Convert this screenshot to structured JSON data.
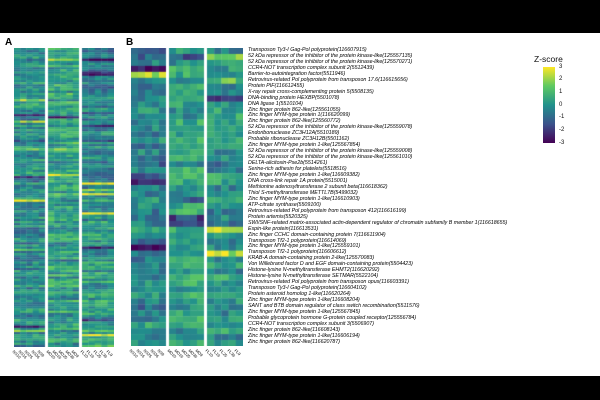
{
  "figure": {
    "panel_a": "A",
    "panel_b": "B"
  },
  "legend": {
    "title": "Z-score",
    "ticks": [
      "3",
      "2",
      "1",
      "0",
      "-1",
      "-2",
      "-3"
    ],
    "tick_values": [
      3,
      2,
      1,
      0,
      -1,
      -2,
      -3
    ],
    "zmin": -3,
    "zmax": 3,
    "gradient_stops": [
      "#440154",
      "#3b528b",
      "#21918c",
      "#5ec962",
      "#fde725"
    ]
  },
  "samples": {
    "groups": [
      "NS",
      "MD",
      "FL"
    ],
    "labels": [
      "NS10",
      "NS16",
      "NS25",
      "NS36",
      "NS9",
      "MD10",
      "MD16",
      "MD25",
      "MD36",
      "MD9",
      "FL10",
      "FL16",
      "FL25",
      "FL36",
      "FL9"
    ]
  },
  "genes": [
    "Transposon Ty3-I Gag-Pol polyprotein(116607915)",
    "52 kDa repressor of the inhibitor of the protein kinase-like(125557135)",
    "52 kDa repressor of the inhibitor of the protein kinase-like(125570271)",
    "CCR4-NOT transcription complex subunit 2(5512439)",
    "Barrier-to-autointegration factor(5511946)",
    "Retrovirus-related Pol polyprotein from transposon 17.6(116615656)",
    "Protein PIF(116612455)",
    "X-ray repair cross-complementing protein 5(5508135)",
    "DNA-binding protein HEXBP(5501078)",
    "DNA ligase 1(5510104)",
    "Zinc finger protein 862-like(125561055)",
    "Zinc finger MYM-type protein 1(116620099)",
    "Zinc finger protein 862-like(125560772)",
    "52 kDa repressor of the inhibitor of the protein kinase-like(125559078)",
    "Endoribonuclease ZC3H12A(5510189)",
    "Probable ribonuclease ZC3H12B(5501162)",
    "Zinc finger MYM-type protein 1-like(125567854)",
    "52 kDa repressor of the inhibitor of the protein kinase-like(125559008)",
    "52 kDa repressor of the inhibitor of the protein kinase-like(125561010)",
    "DELTA-alicitoxin-Pse2b(5514261)",
    "Serine-rich adhesin for platelets(5518516)",
    "Zinc finger MYM-type protein 1-like(116609382)",
    "DNA cross-link repair 1A protein(5515001)",
    "Methionine adenosyltransferase 2 subunit beta(116618362)",
    "Thiol S-methyltransferase METTL7B(5499032)",
    "Zinc finger MYM-type protein 1-like(116610903)",
    "ATP-citrate synthase(5509100)",
    "Retrovirus-related Pol polyprotein from transposon 412(116616199)",
    "Protein artemis(5520325)",
    "SWI/SNF-related matrix-associated actin-dependent regulator of chromatin subfamily B member 1(116618655)",
    "Espin-like protein(116613531)",
    "Zinc finger CCHC domain-containing protein 7(116611904)",
    "Transposon Tf2-1 polyprotein(116614069)",
    "Zinc finger MYM-type protein 1-like(125559101)",
    "Transposon Tf2-1 polyprotein(116606612)",
    "KRAB-A domain-containing protein 2-like(125570083)",
    "Von Willebrand factor D and EGF domain-containing protein(5504423)",
    "Histone-lysine N-methyltransferase EHMT2(116620292)",
    "Histone-lysine N-methyltransferase SETMAR(5522104)",
    "Retrovirus-related Pol polyprotein from transposon opus(116603391)",
    "Transposon Ty3-I Gag-Pol polyprotein(116604102)",
    "Protein asteroid homolog 1-like(116620264)",
    "Zinc finger MYM-type protein 1-like(116608204)",
    "SANT and BTB domain regulator of class switch recombination(5511576)",
    "Zinc finger MYM-type protein 1-like(125567845)",
    "Probable glycoprotein hormone G-protein coupled receptor(125556784)",
    "CCR4-NOT transcription complex subunit 3(5506907)",
    "Zinc finger protein 862-like(116608143)",
    "Zinc finger MYM-type protein 1-like(116606194)",
    "Zinc finger protein 862-like(116620787)"
  ],
  "chart_data": [
    {
      "type": "heatmap",
      "panel": "A",
      "n_rows": 140,
      "n_cols": 15,
      "columns": [
        "NS10",
        "NS16",
        "NS25",
        "NS36",
        "NS9",
        "MD10",
        "MD16",
        "MD25",
        "MD36",
        "MD9",
        "FL10",
        "FL16",
        "FL25",
        "FL36",
        "FL9"
      ],
      "zlim": [
        -3,
        3
      ],
      "colormap": "viridis",
      "pattern": {
        "seed": 42,
        "block_bias": [
          -0.1,
          0.35,
          -0.15
        ],
        "block_trend": [
          0,
          0,
          1.3
        ],
        "row_streak": 0.8,
        "cell_noise": 0.7
      }
    },
    {
      "type": "heatmap",
      "panel": "B",
      "n_rows": 50,
      "n_cols": 15,
      "columns": [
        "NS10",
        "NS16",
        "NS25",
        "NS36",
        "NS9",
        "MD10",
        "MD16",
        "MD25",
        "MD36",
        "MD9",
        "FL10",
        "FL16",
        "FL25",
        "FL36",
        "FL9"
      ],
      "row_labels_from": "genes",
      "zlim": [
        -3,
        3
      ],
      "colormap": "viridis",
      "pattern": {
        "seed": 7,
        "block_bias": [
          -0.4,
          0.35,
          0.05
        ],
        "block_trend": [
          0.3,
          0,
          0.4
        ],
        "row_streak": 0.7,
        "cell_noise": 0.75
      }
    }
  ]
}
